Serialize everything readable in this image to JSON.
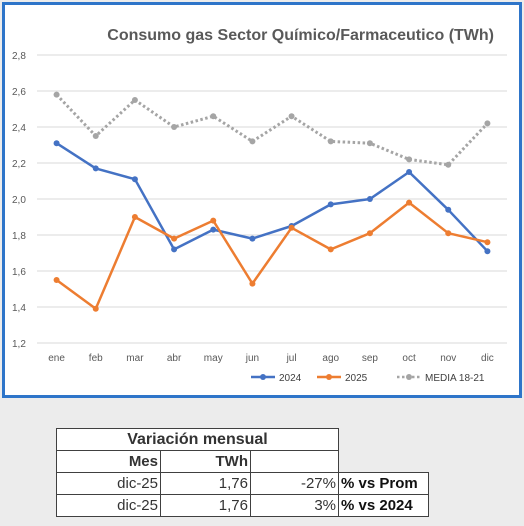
{
  "chart_data": {
    "type": "line",
    "title": "Consumo gas Sector Químico/Farmaceutico (TWh)",
    "categories": [
      "ene",
      "feb",
      "mar",
      "abr",
      "may",
      "jun",
      "jul",
      "ago",
      "sep",
      "oct",
      "nov",
      "dic"
    ],
    "y_ticks": [
      "1,2",
      "1,4",
      "1,6",
      "1,8",
      "2,0",
      "2,2",
      "2,4",
      "2,6",
      "2,8"
    ],
    "ylim": [
      1.2,
      2.8
    ],
    "grid": true,
    "legend_position": "bottom",
    "series": [
      {
        "name": "2024",
        "color": "#4472c4",
        "style": "solid",
        "values": [
          2.31,
          2.17,
          2.11,
          1.72,
          1.83,
          1.78,
          1.85,
          1.97,
          2.0,
          2.15,
          1.94,
          1.71
        ]
      },
      {
        "name": "2025",
        "color": "#ed7d31",
        "style": "solid",
        "values": [
          1.55,
          1.39,
          1.9,
          1.78,
          1.88,
          1.53,
          1.84,
          1.72,
          1.81,
          1.98,
          1.81,
          1.76
        ]
      },
      {
        "name": "MEDIA 18-21",
        "color": "#a5a5a5",
        "style": "dotted",
        "values": [
          2.58,
          2.35,
          2.55,
          2.4,
          2.46,
          2.32,
          2.46,
          2.32,
          2.31,
          2.22,
          2.19,
          2.42
        ]
      }
    ]
  },
  "table": {
    "title": "Variación mensual",
    "col_mes": "Mes",
    "col_twh": "TWh",
    "rows": [
      {
        "mes": "dic-25",
        "twh": "1,76",
        "pct": "-27%",
        "label": "% vs Prom"
      },
      {
        "mes": "dic-25",
        "twh": "1,76",
        "pct": "3%",
        "label": "% vs 2024"
      }
    ]
  }
}
